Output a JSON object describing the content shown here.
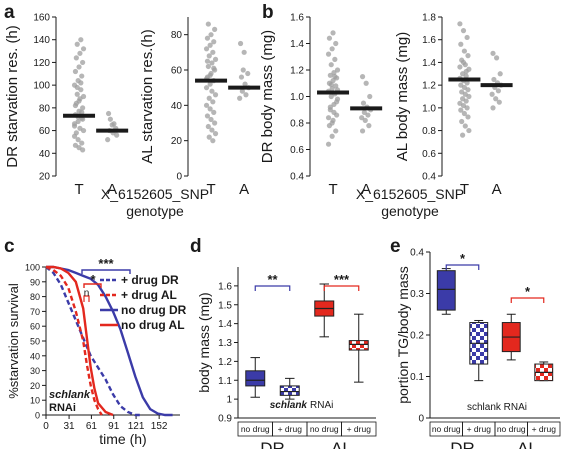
{
  "colors": {
    "black": "#1a1a1a",
    "dot": "#9e9e9e",
    "blue": "#3b3ba8",
    "red": "#e3281e"
  },
  "panel_labels": {
    "a": "a",
    "b": "b",
    "c": "c",
    "d": "d",
    "e": "e"
  },
  "shared": {
    "genotype_snp": "X_6152605_SNP",
    "genotype_word": "genotype"
  },
  "chart_data": [
    {
      "id": "a1",
      "type": "scatter",
      "ylabel": "DR starvation res. (h)",
      "ylim": [
        20,
        160
      ],
      "yticks": [
        "20",
        "40",
        "60",
        "80",
        "100",
        "120",
        "140",
        "160"
      ],
      "categories": [
        "T",
        "A"
      ],
      "means": [
        73,
        60
      ],
      "points": [
        [
          64,
          68,
          71,
          74,
          77,
          80,
          84,
          88,
          60,
          92,
          96,
          100,
          104,
          108,
          112,
          116,
          120,
          124,
          128,
          132,
          136,
          140,
          66,
          72,
          76,
          82,
          86,
          70,
          58,
          62,
          90,
          98,
          102,
          55,
          52,
          49,
          47,
          45,
          43
        ],
        [
          75,
          65,
          62,
          60,
          58,
          56,
          70,
          66,
          52
        ]
      ]
    },
    {
      "id": "a2",
      "type": "scatter",
      "ylabel": "AL starvation res.(h)",
      "ylim": [
        0,
        90
      ],
      "yticks": [
        "0",
        "20",
        "40",
        "60",
        "80"
      ],
      "categories": [
        "T",
        "A"
      ],
      "means": [
        54,
        50
      ],
      "points": [
        [
          50,
          52,
          54,
          56,
          58,
          60,
          62,
          64,
          66,
          68,
          70,
          72,
          74,
          76,
          78,
          80,
          83,
          86,
          48,
          46,
          44,
          42,
          40,
          38,
          36,
          34,
          32,
          30,
          28,
          26,
          24,
          22,
          20,
          55,
          57,
          61,
          65
        ],
        [
          75,
          70,
          58,
          56,
          52,
          50,
          48,
          46,
          44,
          60
        ]
      ]
    },
    {
      "id": "b1",
      "type": "scatter",
      "ylabel": "DR body mass (mg)",
      "ylim": [
        0.4,
        1.6
      ],
      "yticks": [
        "0.4",
        "0.6",
        "0.8",
        "1.0",
        "1.2",
        "1.4",
        "1.6"
      ],
      "categories": [
        "T",
        "A"
      ],
      "means": [
        1.03,
        0.91
      ],
      "points": [
        [
          0.64,
          0.7,
          0.74,
          0.78,
          0.82,
          0.86,
          0.9,
          0.94,
          0.98,
          1.0,
          1.02,
          1.04,
          1.06,
          1.08,
          1.1,
          1.12,
          1.14,
          1.16,
          1.18,
          1.2,
          1.24,
          1.28,
          1.32,
          1.36,
          1.4,
          1.44,
          1.48,
          0.96,
          0.92,
          0.88,
          1.05,
          1.09,
          1.15,
          0.84,
          0.8
        ],
        [
          1.15,
          1.1,
          1.0,
          0.95,
          0.92,
          0.9,
          0.88,
          0.86,
          0.84,
          0.82,
          0.78,
          0.74
        ]
      ]
    },
    {
      "id": "b2",
      "type": "scatter",
      "ylabel": "AL body mass (mg)",
      "ylim": [
        0.4,
        1.8
      ],
      "yticks": [
        "0.4",
        "0.6",
        "0.8",
        "1.0",
        "1.2",
        "1.4",
        "1.6",
        "1.8"
      ],
      "categories": [
        "T",
        "A"
      ],
      "means": [
        1.25,
        1.2
      ],
      "points": [
        [
          1.74,
          1.68,
          1.62,
          1.56,
          1.5,
          1.46,
          1.42,
          1.38,
          1.34,
          1.3,
          1.28,
          1.26,
          1.24,
          1.22,
          1.2,
          1.18,
          1.16,
          1.14,
          1.12,
          1.1,
          1.08,
          1.06,
          1.04,
          1.02,
          1.0,
          0.98,
          0.95,
          0.92,
          0.88,
          0.84,
          0.8,
          0.76,
          1.32,
          1.36,
          1.4
        ],
        [
          1.48,
          1.44,
          1.3,
          1.25,
          1.22,
          1.2,
          1.18,
          1.15,
          1.12,
          1.08,
          1.05,
          1.0
        ]
      ]
    },
    {
      "id": "c",
      "type": "line",
      "xlabel": "time (h)",
      "ylabel": "%starvation survival",
      "xlim": [
        0,
        180
      ],
      "ylim": [
        0,
        100
      ],
      "xticks": [
        "0",
        "31",
        "61",
        "91",
        "121",
        "152"
      ],
      "yticks": [
        "0",
        "10",
        "20",
        "30",
        "40",
        "50",
        "60",
        "70",
        "80",
        "90",
        "100"
      ],
      "legend": [
        "+ drug DR",
        "+ drug AL",
        "no drug DR",
        "no drug AL"
      ],
      "series": [
        {
          "x": [
            0,
            10,
            20,
            30,
            40,
            50,
            60,
            70,
            80,
            90,
            100,
            110,
            120,
            130
          ],
          "y": [
            100,
            96,
            88,
            76,
            64,
            52,
            40,
            32,
            24,
            14,
            6,
            2,
            0,
            0
          ]
        },
        {
          "x": [
            0,
            10,
            20,
            30,
            40,
            50,
            55,
            60,
            65,
            70,
            75
          ],
          "y": [
            100,
            98,
            94,
            86,
            70,
            50,
            34,
            20,
            10,
            4,
            0
          ]
        },
        {
          "x": [
            0,
            10,
            20,
            30,
            40,
            50,
            60,
            70,
            80,
            90,
            100,
            110,
            120,
            130,
            140,
            150,
            160,
            170
          ],
          "y": [
            100,
            100,
            99,
            98,
            96,
            94,
            92,
            88,
            80,
            70,
            58,
            42,
            26,
            12,
            4,
            1,
            0,
            0
          ]
        },
        {
          "x": [
            0,
            10,
            20,
            30,
            40,
            50,
            55,
            60,
            65,
            70,
            80,
            90
          ],
          "y": [
            100,
            100,
            99,
            96,
            90,
            72,
            52,
            32,
            18,
            8,
            2,
            0
          ]
        }
      ],
      "sig": [
        "***",
        "*",
        "n"
      ],
      "annotation_italic": "schlank",
      "annotation": "RNAi"
    },
    {
      "id": "d",
      "type": "box",
      "ylabel": "body mass (mg)",
      "ylim": [
        0.9,
        1.7
      ],
      "yticks": [
        "0.9",
        "1",
        "1.1",
        "1.2",
        "1.3",
        "1.4",
        "1.5",
        "1.6"
      ],
      "group_labels": [
        "DR",
        "AL"
      ],
      "box_labels": [
        "no drug",
        "+ drug",
        "no drug",
        "+ drug"
      ],
      "boxes": [
        {
          "min": 1.01,
          "q1": 1.07,
          "median": 1.1,
          "q3": 1.15,
          "max": 1.22
        },
        {
          "min": 1.0,
          "q1": 1.02,
          "median": 1.04,
          "q3": 1.07,
          "max": 1.11
        },
        {
          "min": 1.33,
          "q1": 1.44,
          "median": 1.48,
          "q3": 1.52,
          "max": 1.61
        },
        {
          "min": 1.09,
          "q1": 1.26,
          "median": 1.29,
          "q3": 1.31,
          "max": 1.45
        }
      ],
      "sig": [
        "**",
        "***"
      ],
      "annotation_italic": "schlank",
      "annotation": "RNAi"
    },
    {
      "id": "e",
      "type": "box",
      "ylabel": "portion TG/body mass",
      "ylim": [
        0,
        0.4
      ],
      "yticks": [
        "0",
        "0.1",
        "0.2",
        "0.3",
        "0.4"
      ],
      "group_labels": [
        "DR",
        "AL"
      ],
      "box_labels": [
        "no drug",
        "+ drug",
        "no drug",
        "+ drug"
      ],
      "boxes": [
        {
          "min": 0.25,
          "q1": 0.26,
          "median": 0.31,
          "q3": 0.355,
          "max": 0.36
        },
        {
          "min": 0.09,
          "q1": 0.13,
          "median": 0.18,
          "q3": 0.23,
          "max": 0.235
        },
        {
          "min": 0.14,
          "q1": 0.16,
          "median": 0.195,
          "q3": 0.23,
          "max": 0.25
        },
        {
          "min": 0.09,
          "q1": 0.09,
          "median": 0.11,
          "q3": 0.13,
          "max": 0.135
        }
      ],
      "sig": [
        "*",
        "*"
      ],
      "annotation": "schlank RNAi"
    }
  ]
}
